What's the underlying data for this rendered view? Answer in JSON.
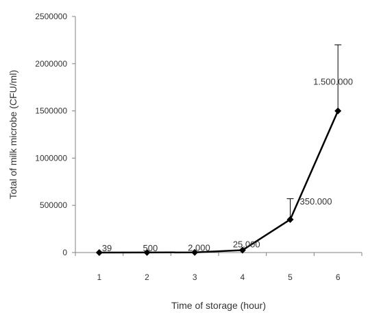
{
  "chart_data": {
    "type": "line",
    "title": "",
    "xlabel": "Time of storage (hour)",
    "ylabel": "Total of milk microbe (CFU/ml)",
    "categories": [
      "1",
      "2",
      "3",
      "4",
      "5",
      "6"
    ],
    "y_tick_labels": [
      "0",
      "500000",
      "1000000",
      "1500000",
      "2000000",
      "2500000"
    ],
    "ylim": [
      0,
      2500000
    ],
    "series": [
      {
        "values": [
          39,
          500,
          2000,
          25000,
          350000,
          1500000
        ],
        "error_upper": [
          0,
          0,
          0,
          0,
          570000,
          2200000
        ]
      }
    ],
    "data_labels": [
      "39",
      "500",
      "2.000",
      "25.000",
      "350.000",
      "1.500.000"
    ],
    "grid": false,
    "legend": "none",
    "colors": {
      "line": "#000000",
      "axis": "#808080"
    }
  }
}
